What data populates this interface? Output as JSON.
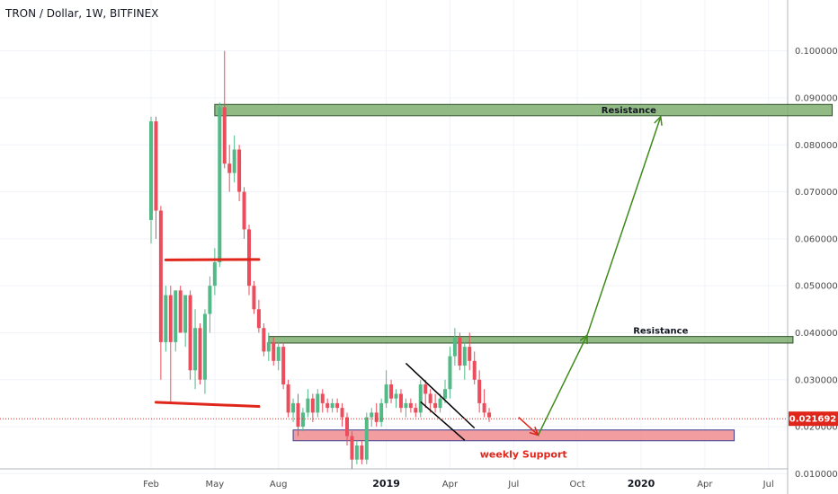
{
  "header": {
    "title": "TRON / Dollar, 1W, BITFINEX"
  },
  "colors": {
    "up": "#53b987",
    "down": "#eb4d5c",
    "grid": "#f0f3fa",
    "axis": "#b2b5be",
    "resistance_fill": "#7fae6e",
    "support_fill": "#f08c8f",
    "red_line": "#e0261b",
    "green_arrow": "#3e8a18",
    "price_tag": "#e0261b"
  },
  "chart_data": {
    "type": "candlestick",
    "title": "TRON / Dollar, 1W, BITFINEX",
    "xlabel": "",
    "ylabel": "",
    "ylim": [
      0.005,
      0.105
    ],
    "y_ticks": [
      "0.010000",
      "0.020000",
      "0.030000",
      "0.040000",
      "0.050000",
      "0.060000",
      "0.070000",
      "0.080000",
      "0.090000",
      "0.100000"
    ],
    "x_ticks": [
      {
        "label": "Feb",
        "week": 0,
        "bold": false
      },
      {
        "label": "May",
        "week": 13,
        "bold": false
      },
      {
        "label": "Aug",
        "week": 26,
        "bold": false
      },
      {
        "label": "2019",
        "week": 48,
        "bold": true
      },
      {
        "label": "Apr",
        "week": 61,
        "bold": false
      },
      {
        "label": "Jul",
        "week": 74,
        "bold": false
      },
      {
        "label": "Oct",
        "week": 87,
        "bold": false
      },
      {
        "label": "2020",
        "week": 100,
        "bold": true
      },
      {
        "label": "Apr",
        "week": 113,
        "bold": false
      },
      {
        "label": "Jul",
        "week": 126,
        "bold": false
      }
    ],
    "current_price": "0.021692",
    "current_price_value": 0.021692,
    "candles": [
      [
        0.064,
        0.086,
        0.059,
        0.085
      ],
      [
        0.085,
        0.086,
        0.06,
        0.066
      ],
      [
        0.066,
        0.067,
        0.03,
        0.038
      ],
      [
        0.038,
        0.05,
        0.036,
        0.048
      ],
      [
        0.048,
        0.05,
        0.025,
        0.038
      ],
      [
        0.038,
        0.049,
        0.036,
        0.049
      ],
      [
        0.049,
        0.05,
        0.04,
        0.04
      ],
      [
        0.04,
        0.048,
        0.037,
        0.048
      ],
      [
        0.048,
        0.049,
        0.03,
        0.032
      ],
      [
        0.032,
        0.045,
        0.028,
        0.041
      ],
      [
        0.041,
        0.042,
        0.029,
        0.03
      ],
      [
        0.03,
        0.045,
        0.027,
        0.044
      ],
      [
        0.044,
        0.052,
        0.04,
        0.05
      ],
      [
        0.05,
        0.058,
        0.048,
        0.055
      ],
      [
        0.055,
        0.089,
        0.054,
        0.088
      ],
      [
        0.088,
        0.1,
        0.075,
        0.076
      ],
      [
        0.076,
        0.08,
        0.07,
        0.074
      ],
      [
        0.074,
        0.082,
        0.072,
        0.079
      ],
      [
        0.079,
        0.08,
        0.068,
        0.07
      ],
      [
        0.07,
        0.071,
        0.06,
        0.062
      ],
      [
        0.062,
        0.063,
        0.048,
        0.05
      ],
      [
        0.05,
        0.051,
        0.044,
        0.045
      ],
      [
        0.045,
        0.047,
        0.04,
        0.041
      ],
      [
        0.041,
        0.042,
        0.035,
        0.036
      ],
      [
        0.036,
        0.04,
        0.034,
        0.038
      ],
      [
        0.038,
        0.039,
        0.033,
        0.034
      ],
      [
        0.034,
        0.038,
        0.032,
        0.037
      ],
      [
        0.037,
        0.038,
        0.028,
        0.029
      ],
      [
        0.029,
        0.03,
        0.022,
        0.023
      ],
      [
        0.023,
        0.026,
        0.021,
        0.025
      ],
      [
        0.025,
        0.027,
        0.018,
        0.02
      ],
      [
        0.02,
        0.024,
        0.019,
        0.023
      ],
      [
        0.023,
        0.028,
        0.022,
        0.026
      ],
      [
        0.026,
        0.027,
        0.021,
        0.023
      ],
      [
        0.023,
        0.028,
        0.022,
        0.027
      ],
      [
        0.027,
        0.028,
        0.023,
        0.025
      ],
      [
        0.025,
        0.026,
        0.023,
        0.024
      ],
      [
        0.024,
        0.026,
        0.023,
        0.025
      ],
      [
        0.025,
        0.026,
        0.023,
        0.024
      ],
      [
        0.024,
        0.025,
        0.02,
        0.022
      ],
      [
        0.022,
        0.023,
        0.016,
        0.018
      ],
      [
        0.018,
        0.019,
        0.011,
        0.013
      ],
      [
        0.013,
        0.017,
        0.012,
        0.016
      ],
      [
        0.016,
        0.017,
        0.012,
        0.013
      ],
      [
        0.013,
        0.023,
        0.012,
        0.022
      ],
      [
        0.022,
        0.024,
        0.02,
        0.023
      ],
      [
        0.023,
        0.025,
        0.02,
        0.021
      ],
      [
        0.021,
        0.026,
        0.02,
        0.025
      ],
      [
        0.025,
        0.032,
        0.024,
        0.029
      ],
      [
        0.029,
        0.03,
        0.025,
        0.026
      ],
      [
        0.026,
        0.028,
        0.024,
        0.027
      ],
      [
        0.027,
        0.028,
        0.023,
        0.024
      ],
      [
        0.024,
        0.026,
        0.022,
        0.025
      ],
      [
        0.025,
        0.026,
        0.023,
        0.024
      ],
      [
        0.024,
        0.025,
        0.022,
        0.023
      ],
      [
        0.023,
        0.03,
        0.022,
        0.029
      ],
      [
        0.029,
        0.03,
        0.024,
        0.027
      ],
      [
        0.027,
        0.028,
        0.023,
        0.025
      ],
      [
        0.025,
        0.027,
        0.023,
        0.024
      ],
      [
        0.024,
        0.027,
        0.023,
        0.026
      ],
      [
        0.026,
        0.03,
        0.025,
        0.028
      ],
      [
        0.028,
        0.037,
        0.026,
        0.035
      ],
      [
        0.035,
        0.041,
        0.033,
        0.039
      ],
      [
        0.039,
        0.04,
        0.032,
        0.033
      ],
      [
        0.033,
        0.038,
        0.03,
        0.037
      ],
      [
        0.037,
        0.04,
        0.032,
        0.034
      ],
      [
        0.034,
        0.036,
        0.029,
        0.03
      ],
      [
        0.03,
        0.032,
        0.023,
        0.025
      ],
      [
        0.025,
        0.028,
        0.022,
        0.023
      ],
      [
        0.023,
        0.024,
        0.021,
        0.022
      ]
    ],
    "zones": [
      {
        "label": "Resistance",
        "low": 0.0862,
        "high": 0.0886,
        "start": 13,
        "end": 139,
        "kind": "resistance"
      },
      {
        "label": "Resistance",
        "low": 0.0378,
        "high": 0.0392,
        "start": 24,
        "end": 131,
        "kind": "resistance"
      },
      {
        "label": "weekly Support",
        "low": 0.017,
        "high": 0.0193,
        "start": 29,
        "end": 119,
        "kind": "support"
      }
    ],
    "red_lines": [
      [
        {
          "week": 3,
          "price": 0.0555
        },
        {
          "week": 22,
          "price": 0.0556
        }
      ],
      [
        {
          "week": 1,
          "price": 0.0252
        },
        {
          "week": 22,
          "price": 0.0243
        }
      ]
    ],
    "trendlines": [
      [
        {
          "week": 52,
          "price": 0.0335
        },
        {
          "week": 66,
          "price": 0.0197
        }
      ],
      [
        {
          "week": 55,
          "price": 0.0253
        },
        {
          "week": 64,
          "price": 0.0171
        }
      ]
    ],
    "projection": {
      "down": [
        {
          "week": 75,
          "price": 0.022
        },
        {
          "week": 79,
          "price": 0.0182
        }
      ],
      "up1": [
        {
          "week": 79,
          "price": 0.0182
        },
        {
          "week": 89,
          "price": 0.0395
        }
      ],
      "up2": [
        {
          "week": 89,
          "price": 0.0395
        },
        {
          "week": 104,
          "price": 0.086
        }
      ]
    }
  }
}
